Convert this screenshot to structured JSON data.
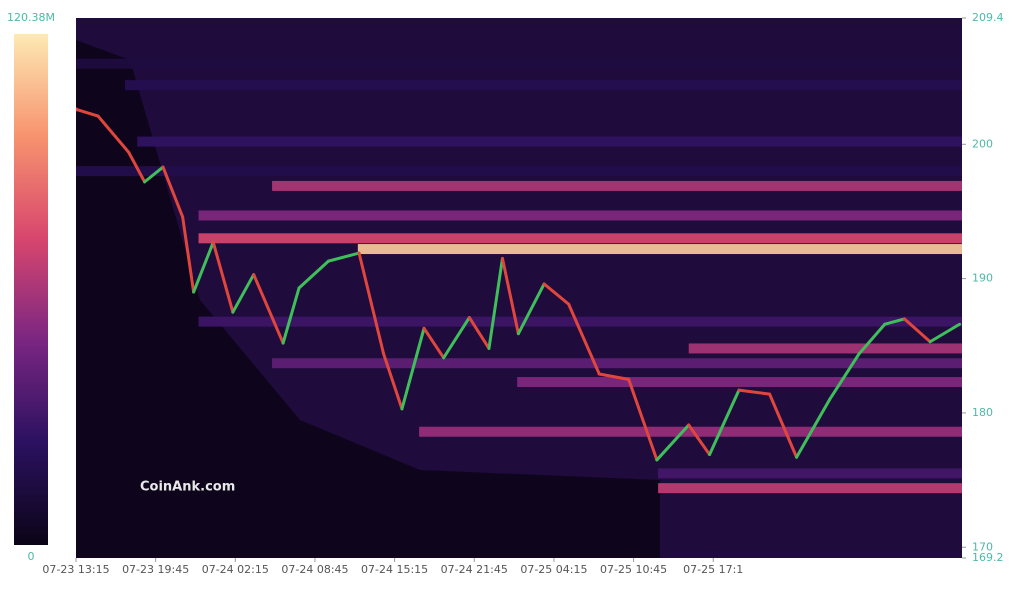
{
  "chart_data": {
    "type": "heatmap",
    "watermark": "CoinAnk.com",
    "colorbar": {
      "lim": [
        0,
        120380000
      ],
      "ticks": [
        0,
        {
          "value": 120380000,
          "label": "120.38M"
        }
      ],
      "colors": [
        "#0b0416",
        "#2b1160",
        "#7a2682",
        "#d8466e",
        "#f7936e",
        "#fde9b4"
      ]
    },
    "xlim": [
      0,
      72.3
    ],
    "xticks": [
      {
        "value": 0,
        "label": "07-23 13:15"
      },
      {
        "value": 6.5,
        "label": "07-23 19:45"
      },
      {
        "value": 13,
        "label": "07-24 02:15"
      },
      {
        "value": 19.5,
        "label": "07-24 08:45"
      },
      {
        "value": 26,
        "label": "07-24 15:15"
      },
      {
        "value": 32.5,
        "label": "07-24 21:45"
      },
      {
        "value": 39,
        "label": "07-25 04:15"
      },
      {
        "value": 45.5,
        "label": "07-25 10:45"
      },
      {
        "value": 52,
        "label": "07-25 17:1"
      }
    ],
    "ylim": [
      169.2,
      209.4
    ],
    "yticks": [
      169.2,
      170,
      180,
      190,
      200,
      209.4
    ],
    "up_color": "#3fbf5a",
    "down_color": "#e0463c",
    "price": {
      "x": [
        0,
        1.8,
        4.3,
        5.6,
        7.1,
        8.7,
        9.6,
        11.2,
        12.8,
        14.5,
        16.9,
        18.2,
        20.6,
        23.1,
        25.1,
        26.6,
        28.4,
        30.0,
        32.1,
        33.7,
        34.8,
        36.1,
        38.2,
        40.2,
        42.7,
        45.1,
        47.4,
        50.0,
        51.7,
        54.1,
        56.6,
        58.8,
        61.5,
        63.9,
        66.0,
        67.6,
        69.7,
        72.1
      ],
      "values": [
        202.6,
        202.1,
        199.4,
        197.2,
        198.3,
        194.6,
        189.0,
        192.7,
        187.5,
        190.3,
        185.2,
        189.3,
        191.3,
        191.9,
        184.4,
        180.3,
        186.3,
        184.1,
        187.1,
        184.8,
        191.5,
        185.9,
        189.6,
        188.1,
        182.9,
        182.5,
        176.5,
        179.1,
        176.9,
        181.7,
        181.4,
        176.7,
        181.0,
        184.4,
        186.6,
        187.0,
        185.3,
        186.6
      ]
    },
    "heat": {
      "from": [
        23,
        10,
        16,
        10,
        5,
        4,
        28,
        36,
        47.5,
        50,
        16,
        10,
        47.5,
        0,
        0
      ],
      "price": [
        192.2,
        193.0,
        196.9,
        194.7,
        200.2,
        204.4,
        178.6,
        182.3,
        174.4,
        184.8,
        183.7,
        186.8,
        175.5,
        206.0,
        198.0
      ],
      "values": [
        112000000,
        72000000,
        62000000,
        50000000,
        26000000,
        20000000,
        56000000,
        50000000,
        66000000,
        60000000,
        40000000,
        30000000,
        32000000,
        14000000,
        18000000
      ]
    }
  }
}
